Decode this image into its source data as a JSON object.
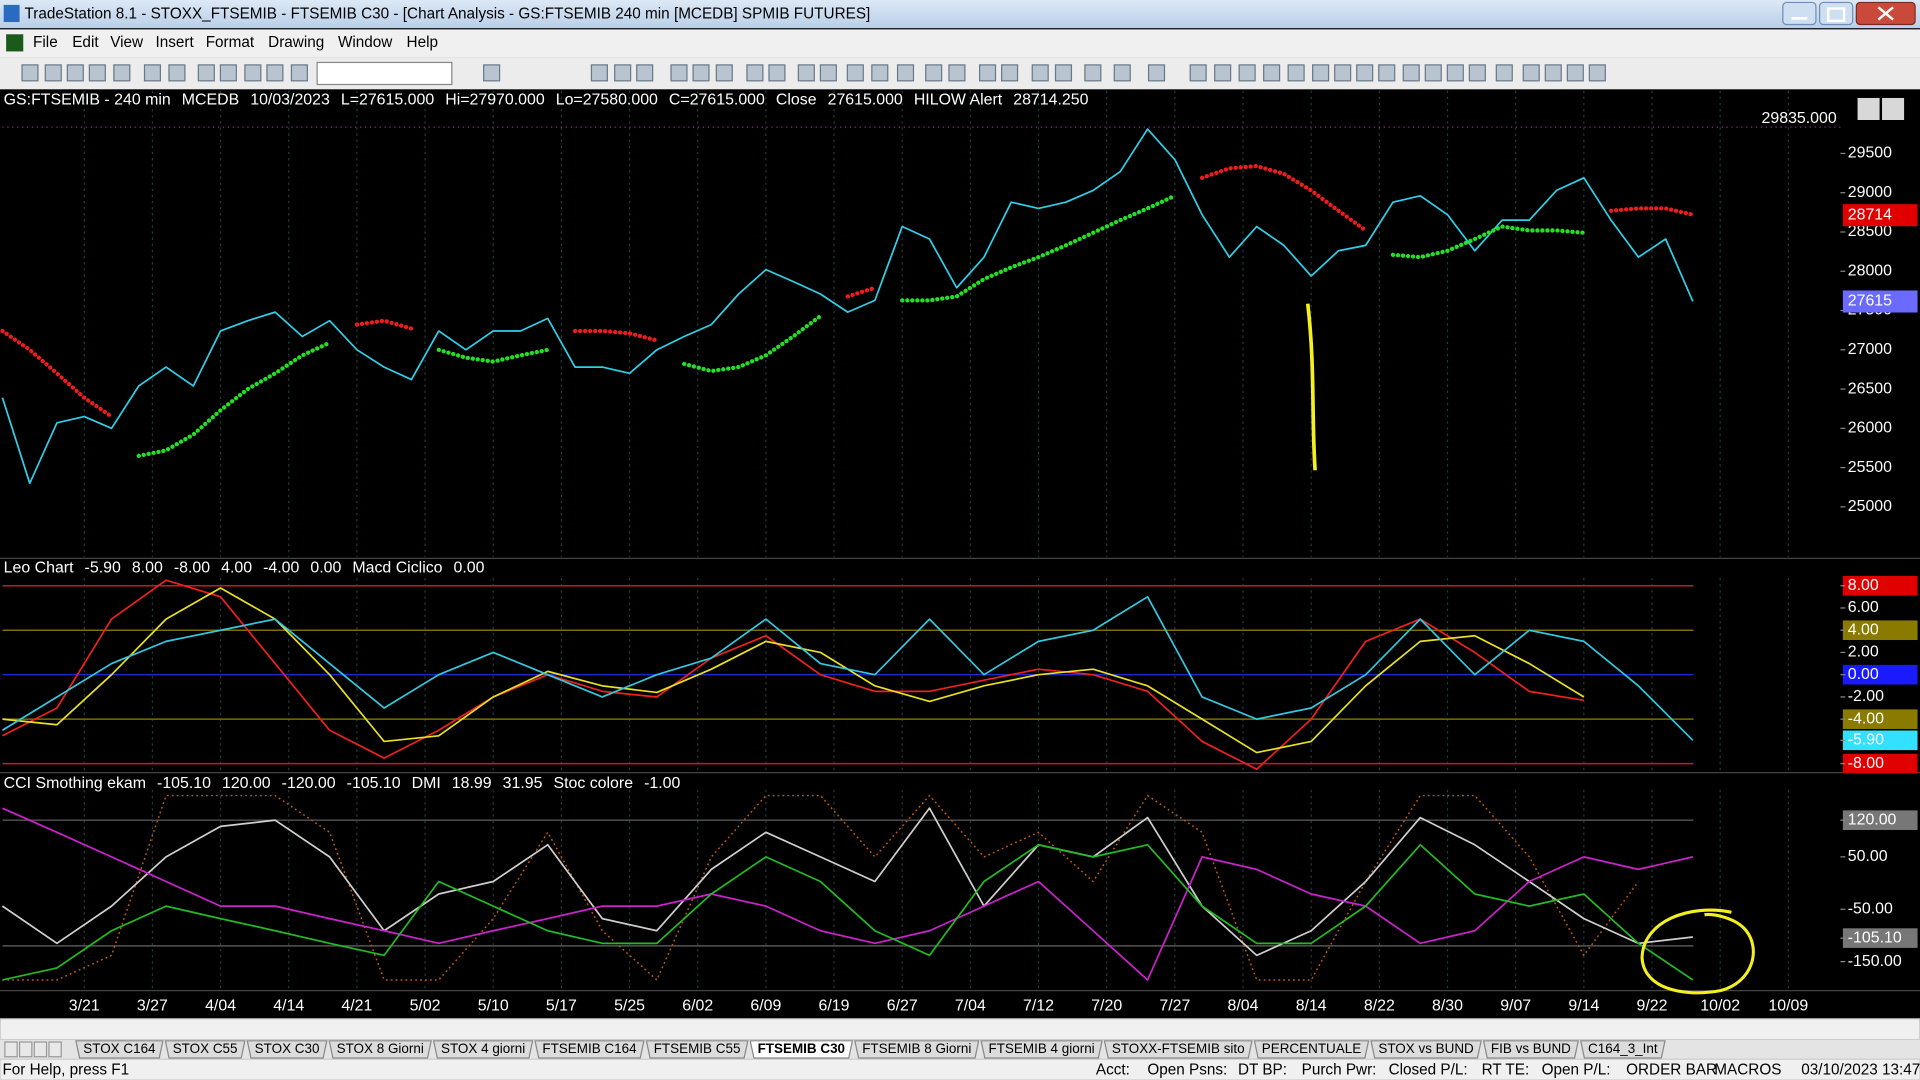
{
  "title_bar": {
    "title": "TradeStation 8.1 - STOXX_FTSEMIB - FTSEMIB C30 - [Chart Analysis - GS:FTSEMIB  240 min  [MCEDB] SPMIB FUTURES]"
  },
  "menu": [
    "File",
    "Edit",
    "View",
    "Insert",
    "Format",
    "Drawing",
    "Window",
    "Help"
  ],
  "chart": {
    "xlim": [
      0,
      270
    ],
    "xticks": [
      {
        "value": 12,
        "label": "3/21"
      },
      {
        "value": 22,
        "label": "3/27"
      },
      {
        "value": 32,
        "label": "4/04"
      },
      {
        "value": 42,
        "label": "4/14"
      },
      {
        "value": 52,
        "label": "4/21"
      },
      {
        "value": 62,
        "label": "5/02"
      },
      {
        "value": 72,
        "label": "5/10"
      },
      {
        "value": 82,
        "label": "5/17"
      },
      {
        "value": 92,
        "label": "5/25"
      },
      {
        "value": 102,
        "label": "6/02"
      },
      {
        "value": 112,
        "label": "6/09"
      },
      {
        "value": 122,
        "label": "6/19"
      },
      {
        "value": 132,
        "label": "6/27"
      },
      {
        "value": 142,
        "label": "7/04"
      },
      {
        "value": 152,
        "label": "7/12"
      },
      {
        "value": 162,
        "label": "7/20"
      },
      {
        "value": 172,
        "label": "7/27"
      },
      {
        "value": 182,
        "label": "8/04"
      },
      {
        "value": 192,
        "label": "8/14"
      },
      {
        "value": 202,
        "label": "8/22"
      },
      {
        "value": 212,
        "label": "8/30"
      },
      {
        "value": 222,
        "label": "9/07"
      },
      {
        "value": 232,
        "label": "9/14"
      },
      {
        "value": 242,
        "label": "9/22"
      },
      {
        "value": 252,
        "label": "10/02"
      },
      {
        "value": 262,
        "label": "10/09"
      }
    ],
    "panes": [
      {
        "legend": [
          {
            "text": "GS:FTSEMIB - 240 min",
            "color": "#4f86ff"
          },
          {
            "text": "MCEDB",
            "color": "#4f86ff"
          },
          {
            "text": "10/03/2023",
            "color": "#ffffff"
          },
          {
            "text": "L=27615.000",
            "color": "#22dd22"
          },
          {
            "text": "Hi=27970.000",
            "color": "#ffffff"
          },
          {
            "text": "Lo=27580.000",
            "color": "#ffffff"
          },
          {
            "text": "C=27615.000",
            "color": "#22dd22"
          },
          {
            "text": "Close",
            "color": "#ffffff"
          },
          {
            "text": "27615.000",
            "color": "#33d6f0"
          },
          {
            "text": "HILOW Alert",
            "color": "#ffffff"
          },
          {
            "text": "28714.250",
            "color": "#ee2020"
          }
        ],
        "ylim": [
          24360,
          30300
        ],
        "yticks": [
          25000,
          25500,
          26000,
          26500,
          27000,
          27500,
          28000,
          28500,
          29000,
          29500
        ],
        "ref": {
          "value": 29835,
          "label": "29835.000",
          "color": "#a020a0"
        },
        "tags": [
          {
            "value": 28714,
            "color": "#e00000"
          },
          {
            "value": 27615,
            "color": "#6a6aff"
          }
        ],
        "x": [
          0,
          4,
          8,
          12,
          16,
          20,
          24,
          28,
          32,
          36,
          40,
          44,
          48,
          52,
          56,
          60,
          64,
          68,
          72,
          76,
          80,
          84,
          88,
          92,
          96,
          100,
          104,
          108,
          112,
          116,
          120,
          124,
          128,
          132,
          136,
          140,
          144,
          148,
          152,
          156,
          160,
          164,
          168,
          172,
          176,
          180,
          184,
          188,
          192,
          196,
          200,
          204,
          208,
          212,
          216,
          220,
          224,
          228,
          232,
          236,
          240,
          244,
          248
        ],
        "series": [
          {
            "color": "#2ed0ea",
            "line_style": "solid",
            "values": [
              26390,
              25300,
              26070,
              26150,
              26000,
              26540,
              26780,
              26540,
              27240,
              27370,
              27480,
              27170,
              27370,
              27000,
              26780,
              26620,
              27240,
              27000,
              27240,
              27240,
              27400,
              26780,
              26780,
              26700,
              27000,
              27170,
              27320,
              27710,
              28020,
              27870,
              27710,
              27480,
              27630,
              28570,
              28410,
              27790,
              28180,
              28880,
              28800,
              28880,
              29030,
              29270,
              29810,
              29420,
              28720,
              28180,
              28570,
              28330,
              27940,
              28260,
              28330,
              28880,
              28960,
              28720,
              28260,
              28650,
              28650,
              29030,
              29190,
              28650,
              28180,
              28410,
              27615
            ]
          },
          {
            "color": "#22e022",
            "line_style": "dotted",
            "values": [
              null,
              null,
              null,
              null,
              null,
              25650,
              25720,
              25920,
              26230,
              26500,
              26700,
              26930,
              27090,
              null,
              null,
              null,
              27000,
              26900,
              26850,
              26930,
              27000,
              null,
              null,
              null,
              null,
              26820,
              26730,
              26780,
              26930,
              27170,
              27430,
              null,
              null,
              27630,
              27630,
              27680,
              27900,
              28050,
              28180,
              28330,
              28490,
              28650,
              28800,
              28960,
              null,
              null,
              null,
              null,
              null,
              null,
              null,
              28210,
              28180,
              28260,
              28410,
              28570,
              28520,
              28520,
              28490,
              null,
              null,
              null,
              null
            ]
          },
          {
            "color": "#ee1c1c",
            "line_style": "dotted",
            "values": [
              27240,
              27000,
              26700,
              26390,
              26150,
              null,
              null,
              null,
              null,
              null,
              null,
              null,
              null,
              27320,
              27370,
              27270,
              null,
              null,
              null,
              null,
              null,
              27240,
              27240,
              27210,
              27120,
              null,
              null,
              null,
              null,
              null,
              null,
              27680,
              27790,
              null,
              null,
              null,
              null,
              null,
              null,
              null,
              null,
              null,
              null,
              null,
              29190,
              29310,
              29340,
              29240,
              29030,
              28770,
              28520,
              null,
              null,
              null,
              null,
              null,
              null,
              null,
              null,
              28770,
              28800,
              28800,
              28720
            ]
          }
        ]
      },
      {
        "legend": [
          {
            "text": "Leo Chart",
            "color": "#ffffff"
          },
          {
            "text": "-5.90",
            "color": "#33d6f0"
          },
          {
            "text": "8.00",
            "color": "#ee2020"
          },
          {
            "text": "-8.00",
            "color": "#ee2020"
          },
          {
            "text": "4.00",
            "color": "#b8a000"
          },
          {
            "text": "-4.00",
            "color": "#b8a000"
          },
          {
            "text": "0.00",
            "color": "#2233ff"
          },
          {
            "text": "Macd Ciclico",
            "color": "#ffffff"
          },
          {
            "text": "0.00",
            "color": "#888888"
          }
        ],
        "ylim": [
          -8.7,
          8.7
        ],
        "yticks": [
          {
            "value": 8,
            "label": "8.00"
          },
          {
            "value": 6,
            "label": "6.00"
          },
          {
            "value": 4,
            "label": "4.00"
          },
          {
            "value": 2,
            "label": "2.00"
          },
          {
            "value": 0,
            "label": "0.00"
          },
          {
            "value": -2,
            "label": "-2.00"
          },
          {
            "value": -4,
            "label": "-4.00"
          },
          {
            "value": -5.9,
            "label": "-5.90"
          },
          {
            "value": -8,
            "label": "-8.00"
          }
        ],
        "ytick_backgrounds": [
          "#e00000",
          "none",
          "#8a7a00",
          "none",
          "#1a1aff",
          "none",
          "#8a7a00",
          "#33e0ff",
          "#e00000"
        ],
        "levels": [
          {
            "value": 8,
            "color": "#d01818"
          },
          {
            "value": 4,
            "color": "#7a6f00"
          },
          {
            "value": 0,
            "color": "#1a2acc"
          },
          {
            "value": -4,
            "color": "#7a6f00"
          },
          {
            "value": -8,
            "color": "#d01818"
          }
        ],
        "x": [
          0,
          8,
          16,
          24,
          32,
          40,
          48,
          56,
          64,
          72,
          80,
          88,
          96,
          104,
          112,
          120,
          128,
          136,
          144,
          152,
          160,
          168,
          176,
          184,
          192,
          200,
          208,
          216,
          224,
          232,
          240,
          248
        ],
        "series": [
          {
            "color": "#ee2020",
            "line_style": "solid",
            "values": [
              -5.5,
              -3,
              5,
              8.5,
              7,
              1,
              -5,
              -7.5,
              -5,
              -2,
              0,
              -1.5,
              -2,
              1.5,
              3.5,
              0,
              -1.5,
              -1.5,
              -0.5,
              0.5,
              0,
              -1.5,
              -6,
              -8.5,
              -4,
              3,
              5,
              2,
              -1.5,
              -2.3,
              null,
              null
            ]
          },
          {
            "color": "#e8e020",
            "line_style": "solid",
            "values": [
              -4,
              -4.5,
              0,
              5,
              7.8,
              5,
              0,
              -6,
              -5.5,
              -2,
              0.3,
              -1,
              -1.6,
              0.5,
              3,
              2,
              -1,
              -2.4,
              -1,
              0,
              0.5,
              -1,
              -4,
              -7,
              -6,
              -1,
              3,
              3.5,
              1,
              -2,
              null,
              null
            ]
          },
          {
            "color": "#33c8e0",
            "line_style": "solid",
            "values": [
              -5,
              -2,
              1,
              3,
              4,
              5,
              1,
              -3,
              0,
              2,
              0,
              -2,
              0,
              1.5,
              5,
              1,
              0,
              5,
              0,
              3,
              4,
              7,
              -2,
              -4,
              -3,
              0,
              5,
              0,
              4,
              3,
              -1,
              -5.9
            ]
          }
        ]
      },
      {
        "legend": [
          {
            "text": "CCI Smothing ekam",
            "color": "#ffffff"
          },
          {
            "text": "-105.10",
            "color": "#cccccc"
          },
          {
            "text": "120.00",
            "color": "#cccccc"
          },
          {
            "text": "-120.00",
            "color": "#cccccc"
          },
          {
            "text": "-105.10",
            "color": "#666666"
          },
          {
            "text": "DMI",
            "color": "#ffffff"
          },
          {
            "text": "18.99",
            "color": "#22dd22"
          },
          {
            "text": "31.95",
            "color": "#dd22dd"
          },
          {
            "text": "Stoc colore",
            "color": "#ffffff"
          },
          {
            "text": "-1.00",
            "color": "#d06010"
          }
        ],
        "ylim": [
          -203,
          178
        ],
        "yticks": [
          {
            "value": 120,
            "label": "120.00"
          },
          {
            "value": 50,
            "label": "50.00"
          },
          {
            "value": -50,
            "label": "-50.00"
          },
          {
            "value": -105.1,
            "label": "-105.10"
          },
          {
            "value": -150,
            "label": "-150.00"
          }
        ],
        "ytick_backgrounds": [
          "#777777",
          "none",
          "none",
          "#777777",
          "none"
        ],
        "levels": [
          {
            "value": 120,
            "color": "#555555"
          },
          {
            "value": -120,
            "color": "#555555"
          }
        ],
        "x": [
          0,
          8,
          16,
          24,
          32,
          40,
          48,
          56,
          64,
          72,
          80,
          88,
          96,
          104,
          112,
          120,
          128,
          136,
          144,
          152,
          160,
          168,
          176,
          184,
          192,
          200,
          208,
          216,
          224,
          232,
          240,
          248
        ],
        "series": [
          {
            "color": "#c05a10",
            "line_style": "dotted",
            "values": [
              -185,
              -185,
              -138,
              167,
              167,
              167,
              97,
              -185,
              -185,
              -68,
              97,
              -91,
              -185,
              50,
              167,
              167,
              50,
              167,
              50,
              97,
              3,
              167,
              97,
              -185,
              -185,
              3,
              167,
              167,
              50,
              -138,
              3,
              null
            ]
          },
          {
            "color": "#cfcfcf",
            "line_style": "solid",
            "values": [
              -44,
              -115,
              -44,
              50,
              108,
              120,
              50,
              -91,
              -21,
              3,
              73,
              -68,
              -91,
              26,
              97,
              50,
              3,
              143,
              -44,
              73,
              50,
              125,
              -44,
              -138,
              -91,
              3,
              125,
              73,
              3,
              -68,
              -115,
              -103
            ]
          },
          {
            "color": "#cc22cc",
            "line_style": "solid",
            "values": [
              143,
              97,
              50,
              3,
              -44,
              -44,
              -68,
              -91,
              -115,
              -91,
              -68,
              -44,
              -44,
              -21,
              -44,
              -91,
              -115,
              -91,
              -44,
              3,
              -91,
              -185,
              50,
              26,
              -21,
              -44,
              -115,
              -91,
              3,
              50,
              26,
              50
            ]
          },
          {
            "color": "#22bb22",
            "line_style": "solid",
            "values": [
              -185,
              -162,
              -91,
              -44,
              -68,
              -91,
              -115,
              -138,
              3,
              -44,
              -91,
              -115,
              -115,
              -21,
              50,
              3,
              -91,
              -138,
              3,
              73,
              50,
              73,
              -44,
              -115,
              -115,
              -44,
              73,
              -21,
              -44,
              -21,
              -115,
              -185
            ]
          }
        ]
      }
    ]
  },
  "tabs": [
    {
      "label": "STOX C164"
    },
    {
      "label": "STOX C55"
    },
    {
      "label": "STOX  C30"
    },
    {
      "label": "STOX 8 Giorni"
    },
    {
      "label": "STOX 4 giorni"
    },
    {
      "label": "FTSEMIB C164"
    },
    {
      "label": "FTSEMIB C55"
    },
    {
      "label": "FTSEMIB C30",
      "active": true
    },
    {
      "label": "FTSEMIB  8 Giorni"
    },
    {
      "label": "FTSEMIB  4 giorni"
    },
    {
      "label": "STOXX-FTSEMIB sito"
    },
    {
      "label": "PERCENTUALE"
    },
    {
      "label": "STOX vs BUND"
    },
    {
      "label": "FIB vs BUND"
    },
    {
      "label": "C164_3_Int"
    }
  ],
  "status_bar": [
    "For Help, press F1",
    "Acct:",
    "Open Psns:",
    "DT BP:",
    "Purch Pwr:",
    "Closed P/L:",
    "RT TE:",
    "Open P/L:",
    "ORDER BAR",
    "MACROS",
    "03/10/2023 13:47"
  ]
}
